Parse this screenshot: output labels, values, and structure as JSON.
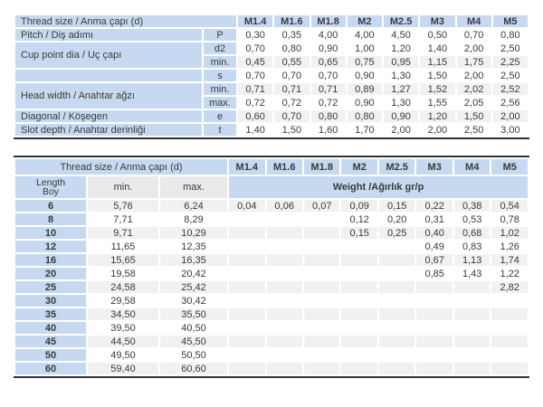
{
  "colors": {
    "header_blue": "#c6d9f0",
    "row_shade_gray": "#f1f1f1",
    "subheader_gray": "#eaeaea",
    "rule_dark": "#2f3138",
    "text": "#3a3a3a"
  },
  "table1": {
    "title": "Thread size / Anma çapı (d)",
    "columns": [
      "M1.4",
      "M1.6",
      "M1.8",
      "M2",
      "M2.5",
      "M3",
      "M4",
      "M5"
    ],
    "rows": [
      {
        "label": "Pitch / Diş adımı",
        "rowspan": 1,
        "symbol": "P",
        "values": [
          "0,30",
          "0,35",
          "4,00",
          "4,00",
          "4,50",
          "0,50",
          "0,70",
          "0,80"
        ]
      },
      {
        "label": "Cup point dia / Uç çapı",
        "rowspan": 2,
        "symbol": "d2",
        "values": [
          "0,70",
          "0,80",
          "0,90",
          "1,00",
          "1,20",
          "1,40",
          "2,00",
          "2,50"
        ]
      },
      {
        "label": null,
        "symbol": "min.",
        "values": [
          "0,45",
          "0,55",
          "0,65",
          "0,75",
          "0,95",
          "1,15",
          "1,75",
          "2,25"
        ]
      },
      {
        "label": "",
        "rowspan": 1,
        "symbol": "s",
        "values": [
          "0,70",
          "0,70",
          "0,70",
          "0,90",
          "1,30",
          "1,50",
          "2,00",
          "2,50"
        ]
      },
      {
        "label": "Head width / Anahtar ağzı",
        "rowspan": 2,
        "symbol": "min.",
        "values": [
          "0,71",
          "0,71",
          "0,71",
          "0,89",
          "1,27",
          "1,52",
          "2,02",
          "2,52"
        ]
      },
      {
        "label": null,
        "symbol": "max.",
        "values": [
          "0,72",
          "0,72",
          "0,72",
          "0,90",
          "1,30",
          "1,55",
          "2,05",
          "2,56"
        ]
      },
      {
        "label": "Diagonal / Köşegen",
        "rowspan": 1,
        "symbol": "e",
        "values": [
          "0,60",
          "0,70",
          "0,80",
          "0,80",
          "0,90",
          "1,20",
          "1,50",
          "2,00"
        ]
      },
      {
        "label": "Slot depth / Anahtar derinliği",
        "rowspan": 1,
        "symbol": "t",
        "values": [
          "1,40",
          "1,50",
          "1,60",
          "1,70",
          "2,00",
          "2,00",
          "2,50",
          "3,00"
        ]
      }
    ]
  },
  "table2": {
    "title": "Thread size / Anma çapı (d)",
    "columns": [
      "M1.4",
      "M1.6",
      "M1.8",
      "M2",
      "M2.5",
      "M3",
      "M4",
      "M5"
    ],
    "subheader": {
      "length_line1": "Length",
      "length_line2": "Boy",
      "min": "min.",
      "max": "max.",
      "weight": "Weight /Ağırlık gr/p"
    },
    "rows": [
      {
        "length": "6",
        "min": "5,76",
        "max": "6,24",
        "weights": [
          "0,04",
          "0,06",
          "0,07",
          "0,09",
          "0,15",
          "0,22",
          "0,38",
          "0,54"
        ]
      },
      {
        "length": "8",
        "min": "7,71",
        "max": "8,29",
        "weights": [
          "",
          "",
          "",
          "0,12",
          "0,20",
          "0,31",
          "0,53",
          "0,78"
        ]
      },
      {
        "length": "10",
        "min": "9,71",
        "max": "10,29",
        "weights": [
          "",
          "",
          "",
          "0,15",
          "0,25",
          "0,40",
          "0,68",
          "1,02"
        ]
      },
      {
        "length": "12",
        "min": "11,65",
        "max": "12,35",
        "weights": [
          "",
          "",
          "",
          "",
          "",
          "0,49",
          "0,83",
          "1,26"
        ]
      },
      {
        "length": "16",
        "min": "15,65",
        "max": "16,35",
        "weights": [
          "",
          "",
          "",
          "",
          "",
          "0,67",
          "1,13",
          "1,74"
        ]
      },
      {
        "length": "20",
        "min": "19,58",
        "max": "20,42",
        "weights": [
          "",
          "",
          "",
          "",
          "",
          "0,85",
          "1,43",
          "1,22"
        ]
      },
      {
        "length": "25",
        "min": "24,58",
        "max": "25,42",
        "weights": [
          "",
          "",
          "",
          "",
          "",
          "",
          "",
          "2,82"
        ]
      },
      {
        "length": "30",
        "min": "29,58",
        "max": "30,42",
        "weights": [
          "",
          "",
          "",
          "",
          "",
          "",
          "",
          ""
        ]
      },
      {
        "length": "35",
        "min": "34,50",
        "max": "35,50",
        "weights": [
          "",
          "",
          "",
          "",
          "",
          "",
          "",
          ""
        ]
      },
      {
        "length": "40",
        "min": "39,50",
        "max": "40,50",
        "weights": [
          "",
          "",
          "",
          "",
          "",
          "",
          "",
          ""
        ]
      },
      {
        "length": "45",
        "min": "44,50",
        "max": "45,50",
        "weights": [
          "",
          "",
          "",
          "",
          "",
          "",
          "",
          ""
        ]
      },
      {
        "length": "50",
        "min": "49,50",
        "max": "50,50",
        "weights": [
          "",
          "",
          "",
          "",
          "",
          "",
          "",
          ""
        ]
      },
      {
        "length": "60",
        "min": "59,40",
        "max": "60,60",
        "weights": [
          "",
          "",
          "",
          "",
          "",
          "",
          "",
          ""
        ]
      }
    ]
  }
}
